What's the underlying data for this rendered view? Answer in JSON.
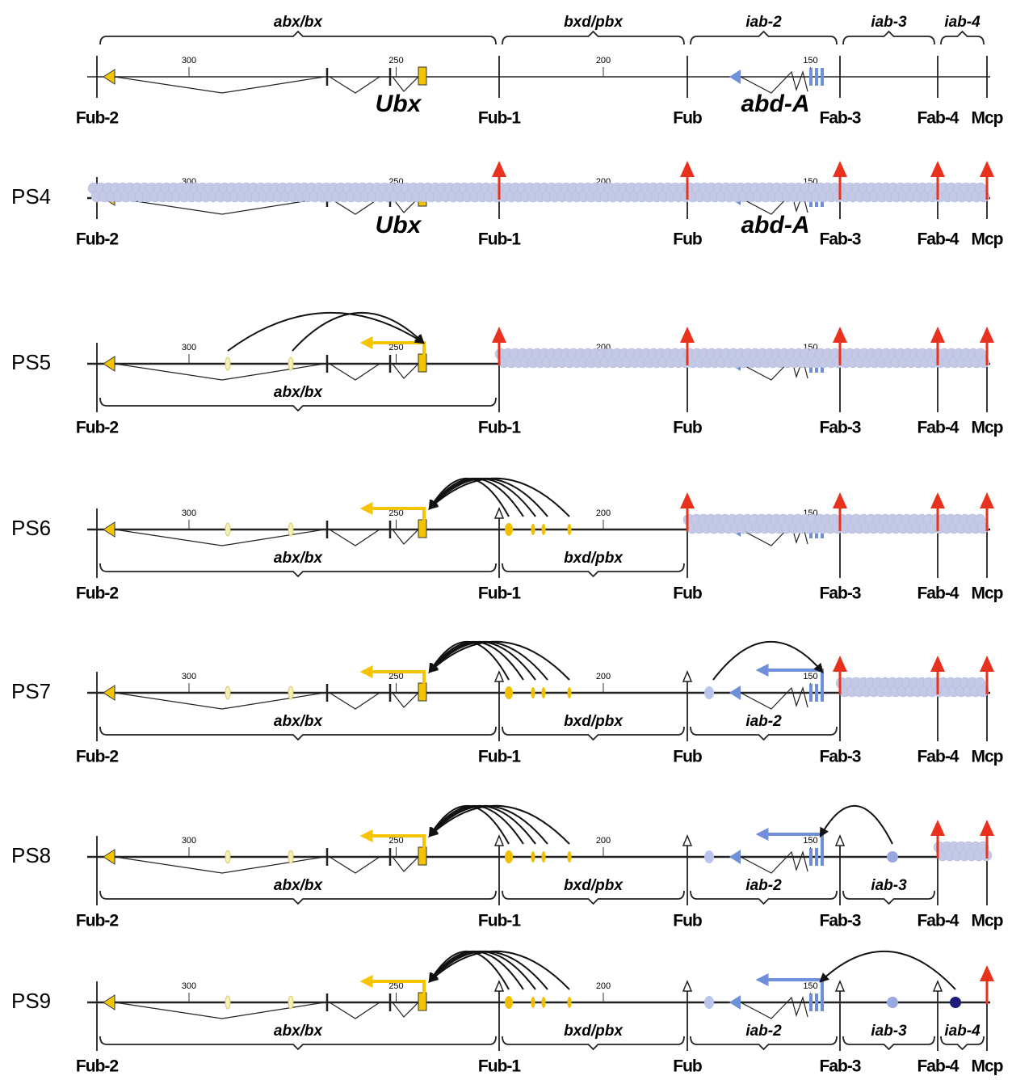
{
  "header": {
    "domains": [
      "abx/bx",
      "bxd/pbx",
      "iab-2",
      "iab-3",
      "iab-4"
    ],
    "genes": [
      "Ubx",
      "abd-A"
    ]
  },
  "boundaries": [
    "Fub-2",
    "Fub-1",
    "Fub",
    "Fab-3",
    "Fab-4",
    "Mcp"
  ],
  "scale": [
    300,
    250,
    200,
    150
  ],
  "rows": [
    {
      "label": "PS4",
      "genes": [
        "Ubx",
        "abd-A"
      ]
    },
    {
      "label": "PS5",
      "domains": [
        "abx/bx"
      ]
    },
    {
      "label": "PS6",
      "domains": [
        "abx/bx",
        "bxd/pbx"
      ]
    },
    {
      "label": "PS7",
      "domains": [
        "abx/bx",
        "bxd/pbx",
        "iab-2"
      ]
    },
    {
      "label": "PS8",
      "domains": [
        "abx/bx",
        "bxd/pbx",
        "iab-2",
        "iab-3"
      ]
    },
    {
      "label": "PS9",
      "domains": [
        "abx/bx",
        "bxd/pbx",
        "iab-2",
        "iab-3",
        "iab-4"
      ]
    }
  ]
}
